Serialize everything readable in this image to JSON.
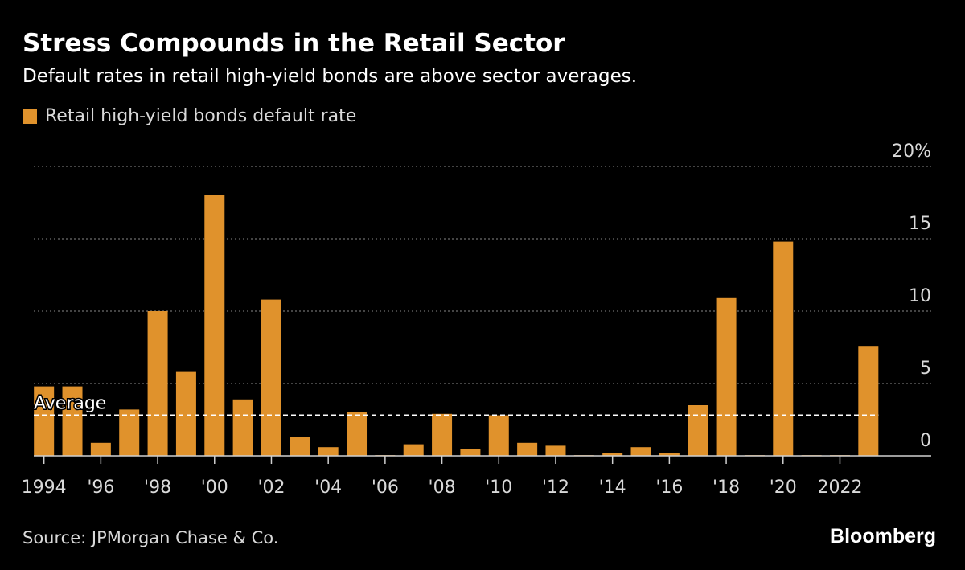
{
  "title": "Stress Compounds in the Retail Sector",
  "subtitle": "Default rates in retail high-yield bonds are above sector averages.",
  "colors": {
    "background": "#000000",
    "bar": "#e0922c",
    "gridline": "#6e6e6e",
    "average_line": "#ffffff",
    "text": "#ffffff",
    "muted_text": "#d9d9d9"
  },
  "source": "Source: JPMorgan Chase & Co.",
  "brand": "Bloomberg",
  "chart_data": {
    "type": "bar",
    "title": "Stress Compounds in the Retail Sector",
    "subtitle": "Default rates in retail high-yield bonds are above sector averages.",
    "xlabel": "",
    "ylabel": "",
    "ylim": [
      0,
      20
    ],
    "y_unit": "%",
    "yticks": [
      {
        "value": 20,
        "label": "20%"
      },
      {
        "value": 15,
        "label": "15"
      },
      {
        "value": 10,
        "label": "10"
      },
      {
        "value": 5,
        "label": "5"
      },
      {
        "value": 0,
        "label": "0"
      }
    ],
    "grid": true,
    "y_axis_side": "right",
    "legend_placement": "top-left",
    "categories": [
      "1994",
      "1995",
      "1996",
      "1997",
      "1998",
      "1999",
      "2000",
      "2001",
      "2002",
      "2003",
      "2004",
      "2005",
      "2006",
      "2007",
      "2008",
      "2009",
      "2010",
      "2011",
      "2012",
      "2013",
      "2014",
      "2015",
      "2016",
      "2017",
      "2018",
      "2019",
      "2020",
      "2021",
      "2022",
      "2023"
    ],
    "x_tick_labels": [
      {
        "category": "1994",
        "label": "1994"
      },
      {
        "category": "1996",
        "label": "'96"
      },
      {
        "category": "1998",
        "label": "'98"
      },
      {
        "category": "2000",
        "label": "'00"
      },
      {
        "category": "2002",
        "label": "'02"
      },
      {
        "category": "2004",
        "label": "'04"
      },
      {
        "category": "2006",
        "label": "'06"
      },
      {
        "category": "2008",
        "label": "'08"
      },
      {
        "category": "2010",
        "label": "'10"
      },
      {
        "category": "2012",
        "label": "'12"
      },
      {
        "category": "2014",
        "label": "'14"
      },
      {
        "category": "2016",
        "label": "'16"
      },
      {
        "category": "2018",
        "label": "'18"
      },
      {
        "category": "2020",
        "label": "'20"
      },
      {
        "category": "2022",
        "label": "2022"
      }
    ],
    "series": [
      {
        "name": "Retail high-yield bonds default rate",
        "values": [
          4.8,
          4.8,
          0.9,
          3.2,
          10.0,
          5.8,
          18.0,
          3.9,
          10.8,
          1.3,
          0.6,
          3.0,
          0.05,
          0.8,
          2.9,
          0.5,
          2.8,
          0.9,
          0.7,
          0.05,
          0.2,
          0.6,
          0.2,
          3.5,
          10.9,
          0.05,
          14.8,
          0.05,
          0.05,
          7.6
        ]
      }
    ],
    "average": {
      "label": "Average",
      "value": 2.8
    }
  }
}
